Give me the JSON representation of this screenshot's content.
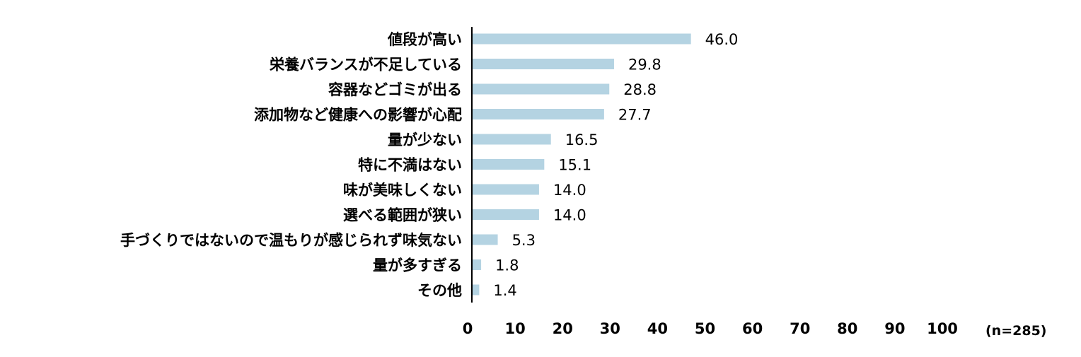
{
  "chart_data": {
    "type": "bar",
    "orientation": "horizontal",
    "categories": [
      "値段が高い",
      "栄養バランスが不足している",
      "容器などゴミが出る",
      "添加物など健康への影響が心配",
      "量が少ない",
      "特に不満はない",
      "味が美味しくない",
      "選べる範囲が狭い",
      "手づくりではないので温もりが感じられず味気ない",
      "量が多すぎる",
      "その他"
    ],
    "values": [
      46.0,
      29.8,
      28.8,
      27.7,
      16.5,
      15.1,
      14.0,
      14.0,
      5.3,
      1.8,
      1.4
    ],
    "value_labels": [
      "46.0",
      "29.8",
      "28.8",
      "27.7",
      "16.5",
      "15.1",
      "14.0",
      "14.0",
      "5.3",
      "1.8",
      "1.4"
    ],
    "xlim": [
      0,
      100
    ],
    "x_ticks": [
      "0",
      "10",
      "20",
      "30",
      "40",
      "50",
      "60",
      "70",
      "80",
      "90",
      "100"
    ],
    "sample_note": "(n=285)",
    "bar_color": "#b4d3e2",
    "axis_color": "#000000",
    "grid": false,
    "legend": "none"
  }
}
